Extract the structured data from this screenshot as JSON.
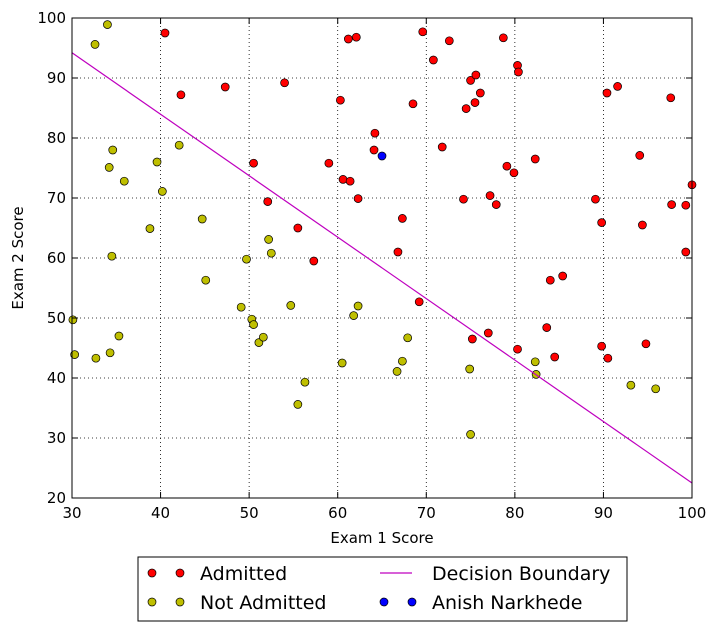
{
  "chart_data": {
    "type": "scatter",
    "title": "",
    "xlabel": "Exam 1 Score",
    "ylabel": "Exam 2 Score",
    "xlim": [
      30,
      100
    ],
    "ylim": [
      20,
      100
    ],
    "xticks": [
      30,
      40,
      50,
      60,
      70,
      80,
      90,
      100
    ],
    "yticks": [
      20,
      30,
      40,
      50,
      60,
      70,
      80,
      90,
      100
    ],
    "grid": true,
    "legend_position": "below plot",
    "series": [
      {
        "name": "Admitted",
        "kind": "markers",
        "color": "#ff0000",
        "points": [
          [
            40.5,
            97.5
          ],
          [
            42.3,
            87.2
          ],
          [
            47.3,
            88.5
          ],
          [
            54.0,
            89.2
          ],
          [
            61.2,
            96.5
          ],
          [
            62.1,
            96.8
          ],
          [
            69.6,
            97.7
          ],
          [
            72.6,
            96.2
          ],
          [
            78.7,
            96.7
          ],
          [
            70.8,
            93.0
          ],
          [
            75.0,
            89.6
          ],
          [
            75.6,
            90.5
          ],
          [
            80.3,
            92.1
          ],
          [
            80.4,
            91.0
          ],
          [
            76.1,
            87.5
          ],
          [
            60.3,
            86.3
          ],
          [
            68.5,
            85.7
          ],
          [
            75.5,
            85.9
          ],
          [
            74.5,
            84.9
          ],
          [
            64.2,
            80.8
          ],
          [
            64.1,
            78.0
          ],
          [
            71.8,
            78.5
          ],
          [
            59.0,
            75.8
          ],
          [
            50.5,
            75.8
          ],
          [
            60.6,
            73.1
          ],
          [
            61.4,
            72.8
          ],
          [
            82.3,
            76.5
          ],
          [
            79.1,
            75.3
          ],
          [
            79.9,
            74.2
          ],
          [
            62.3,
            69.9
          ],
          [
            52.1,
            69.4
          ],
          [
            74.2,
            69.8
          ],
          [
            77.2,
            70.4
          ],
          [
            77.9,
            68.9
          ],
          [
            67.3,
            66.6
          ],
          [
            55.5,
            65.0
          ],
          [
            57.3,
            59.5
          ],
          [
            66.8,
            61.0
          ],
          [
            69.2,
            52.7
          ],
          [
            77.0,
            47.5
          ],
          [
            75.2,
            46.5
          ],
          [
            80.3,
            44.8
          ],
          [
            83.6,
            48.4
          ],
          [
            84.5,
            43.5
          ],
          [
            84.0,
            56.3
          ],
          [
            85.4,
            57.0
          ],
          [
            89.1,
            69.8
          ],
          [
            89.8,
            65.9
          ],
          [
            94.1,
            77.1
          ],
          [
            94.4,
            65.5
          ],
          [
            90.4,
            87.5
          ],
          [
            91.6,
            88.6
          ],
          [
            97.6,
            86.7
          ],
          [
            97.7,
            68.9
          ],
          [
            99.3,
            68.8
          ],
          [
            100.0,
            72.2
          ],
          [
            99.3,
            61.0
          ],
          [
            89.8,
            45.3
          ],
          [
            90.5,
            43.3
          ],
          [
            94.8,
            45.7
          ]
        ]
      },
      {
        "name": "Not Admitted",
        "kind": "markers",
        "color": "#bfbf00",
        "points": [
          [
            34.0,
            98.9
          ],
          [
            32.6,
            95.6
          ],
          [
            34.6,
            78.0
          ],
          [
            34.2,
            75.1
          ],
          [
            35.9,
            72.8
          ],
          [
            39.6,
            76.0
          ],
          [
            42.1,
            78.8
          ],
          [
            40.2,
            71.1
          ],
          [
            38.8,
            64.9
          ],
          [
            44.7,
            66.5
          ],
          [
            34.5,
            60.3
          ],
          [
            45.1,
            56.3
          ],
          [
            49.7,
            59.8
          ],
          [
            52.2,
            63.1
          ],
          [
            52.5,
            60.8
          ],
          [
            30.1,
            49.7
          ],
          [
            30.3,
            43.9
          ],
          [
            32.7,
            43.3
          ],
          [
            34.3,
            44.2
          ],
          [
            35.3,
            47.0
          ],
          [
            49.1,
            51.8
          ],
          [
            50.3,
            49.8
          ],
          [
            50.5,
            48.9
          ],
          [
            51.1,
            45.9
          ],
          [
            51.6,
            46.8
          ],
          [
            54.7,
            52.1
          ],
          [
            55.5,
            35.6
          ],
          [
            56.3,
            39.3
          ],
          [
            60.5,
            42.5
          ],
          [
            61.8,
            50.4
          ],
          [
            62.3,
            52.0
          ],
          [
            66.7,
            41.1
          ],
          [
            67.3,
            42.8
          ],
          [
            67.9,
            46.7
          ],
          [
            74.9,
            41.5
          ],
          [
            75.0,
            30.6
          ],
          [
            82.3,
            42.7
          ],
          [
            82.4,
            40.6
          ],
          [
            93.1,
            38.8
          ],
          [
            95.9,
            38.2
          ]
        ]
      },
      {
        "name": "Decision Boundary",
        "kind": "line",
        "color": "#bf00bf",
        "points": [
          [
            30,
            94.2
          ],
          [
            100,
            22.5
          ]
        ]
      },
      {
        "name": "Anish Narkhede",
        "kind": "markers",
        "color": "#0000ff",
        "points": [
          [
            65,
            77
          ]
        ]
      }
    ]
  }
}
